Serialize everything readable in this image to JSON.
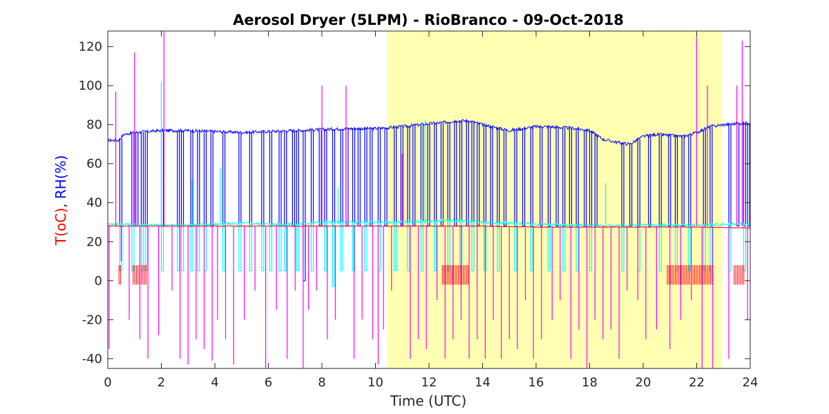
{
  "chart_data": {
    "type": "line",
    "title": "Aerosol Dryer (5LPM) - RioBranco - 09-Oct-2018",
    "xlabel": "Time (UTC)",
    "ylabel_parts": [
      {
        "text": "T(oC)",
        "color": "#ff0000"
      },
      {
        "text": ", ",
        "color": "#262626"
      },
      {
        "text": "RH(%)",
        "color": "#0000ff"
      }
    ],
    "xlim": [
      0,
      24
    ],
    "ylim": [
      -45,
      128
    ],
    "x_ticks": [
      "0",
      "2",
      "4",
      "6",
      "8",
      "10",
      "12",
      "14",
      "16",
      "18",
      "20",
      "22",
      "24"
    ],
    "y_ticks": [
      "-40",
      "-20",
      "0",
      "20",
      "40",
      "60",
      "80",
      "100",
      "120"
    ],
    "grid": false,
    "shaded_region": {
      "x_start": 10.45,
      "x_end": 22.95,
      "color": "#ffffb2"
    },
    "series": [
      {
        "color": "#0000ff",
        "baseline": [
          [
            0,
            72
          ],
          [
            0.4,
            72
          ],
          [
            0.6,
            75
          ],
          [
            1,
            76
          ],
          [
            2,
            77
          ],
          [
            3,
            77
          ],
          [
            4,
            76.5
          ],
          [
            5,
            76
          ],
          [
            6,
            76.5
          ],
          [
            7,
            77
          ],
          [
            8,
            77.5
          ],
          [
            9,
            78
          ],
          [
            10,
            78
          ],
          [
            10.5,
            78.5
          ],
          [
            11,
            79
          ],
          [
            12,
            80.5
          ],
          [
            12.5,
            81
          ],
          [
            13,
            82
          ],
          [
            13.5,
            82
          ],
          [
            14,
            80
          ],
          [
            14.5,
            78.5
          ],
          [
            15,
            77
          ],
          [
            15.5,
            78
          ],
          [
            16,
            79
          ],
          [
            16.5,
            79
          ],
          [
            17,
            78.5
          ],
          [
            17.5,
            78
          ],
          [
            18,
            77
          ],
          [
            18.5,
            72.5
          ],
          [
            19,
            71
          ],
          [
            19.5,
            70
          ],
          [
            20,
            74
          ],
          [
            20.5,
            75
          ],
          [
            21,
            74.5
          ],
          [
            21.5,
            74
          ],
          [
            22,
            76
          ],
          [
            22.5,
            79
          ],
          [
            23,
            80
          ],
          [
            23.5,
            80.5
          ],
          [
            24,
            81
          ]
        ],
        "dropouts": [
          [
            0.45,
            28
          ],
          [
            0.9,
            28
          ],
          [
            1.05,
            28
          ],
          [
            1.25,
            28
          ],
          [
            1.4,
            28
          ],
          [
            2.0,
            28
          ],
          [
            2.6,
            28
          ],
          [
            2.75,
            28
          ],
          [
            3.1,
            28
          ],
          [
            3.35,
            28
          ],
          [
            3.6,
            28
          ],
          [
            3.85,
            28
          ],
          [
            4.3,
            28
          ],
          [
            4.9,
            28
          ],
          [
            5.3,
            28
          ],
          [
            5.75,
            28
          ],
          [
            6.05,
            28
          ],
          [
            6.4,
            28
          ],
          [
            6.6,
            28
          ],
          [
            6.9,
            28
          ],
          [
            7.05,
            28
          ],
          [
            7.3,
            0
          ],
          [
            7.6,
            28
          ],
          [
            7.9,
            28
          ],
          [
            8.1,
            28
          ],
          [
            8.4,
            28
          ],
          [
            8.7,
            28
          ],
          [
            8.9,
            28
          ],
          [
            9.15,
            28
          ],
          [
            9.35,
            28
          ],
          [
            9.6,
            28
          ],
          [
            9.8,
            28
          ],
          [
            10.1,
            28
          ],
          [
            10.35,
            28
          ],
          [
            10.7,
            28
          ],
          [
            10.95,
            28
          ],
          [
            11.2,
            28
          ],
          [
            11.4,
            28
          ],
          [
            11.7,
            28
          ],
          [
            11.95,
            28
          ],
          [
            12.2,
            28
          ],
          [
            12.45,
            28
          ],
          [
            12.7,
            28
          ],
          [
            12.95,
            28
          ],
          [
            13.15,
            28
          ],
          [
            13.4,
            28
          ],
          [
            13.6,
            28
          ],
          [
            13.8,
            28
          ],
          [
            14.05,
            28
          ],
          [
            14.3,
            28
          ],
          [
            14.55,
            28
          ],
          [
            14.8,
            28
          ],
          [
            15.2,
            28
          ],
          [
            15.5,
            28
          ],
          [
            15.8,
            28
          ],
          [
            16.15,
            28
          ],
          [
            16.45,
            28
          ],
          [
            16.75,
            28
          ],
          [
            17.0,
            28
          ],
          [
            17.25,
            28
          ],
          [
            17.5,
            28
          ],
          [
            17.8,
            28
          ],
          [
            18.0,
            28
          ],
          [
            18.2,
            28
          ],
          [
            19.2,
            28
          ],
          [
            19.5,
            28
          ],
          [
            19.8,
            28
          ],
          [
            20.2,
            28
          ],
          [
            20.6,
            28
          ],
          [
            20.95,
            28
          ],
          [
            21.2,
            28
          ],
          [
            21.45,
            28
          ],
          [
            21.7,
            28
          ],
          [
            22.25,
            28
          ],
          [
            22.5,
            28
          ],
          [
            23.2,
            28
          ],
          [
            23.5,
            28
          ],
          [
            23.75,
            28
          ],
          [
            23.9,
            28
          ]
        ]
      },
      {
        "color": "#00ffff",
        "baseline": [
          [
            0,
            29
          ],
          [
            1,
            29
          ],
          [
            2,
            28.5
          ],
          [
            3,
            28.5
          ],
          [
            4,
            29
          ],
          [
            5,
            29.5
          ],
          [
            6,
            29
          ],
          [
            7,
            29
          ],
          [
            8,
            30
          ],
          [
            9,
            30
          ],
          [
            10,
            30
          ],
          [
            11,
            30
          ],
          [
            12,
            30.5
          ],
          [
            13,
            31
          ],
          [
            14,
            30
          ],
          [
            15,
            29.5
          ],
          [
            16,
            29
          ],
          [
            17,
            28.5
          ],
          [
            18,
            28.5
          ],
          [
            19,
            28
          ],
          [
            20,
            28.5
          ],
          [
            21,
            28.5
          ],
          [
            22,
            28.5
          ],
          [
            23,
            29
          ],
          [
            24,
            29
          ]
        ],
        "dropouts": [
          [
            0.45,
            5
          ],
          [
            0.9,
            5
          ],
          [
            1.25,
            5
          ],
          [
            1.4,
            5
          ],
          [
            2.0,
            5
          ],
          [
            2.6,
            5
          ],
          [
            2.75,
            5
          ],
          [
            3.1,
            5
          ],
          [
            3.35,
            5
          ],
          [
            3.6,
            5
          ],
          [
            4.3,
            5
          ],
          [
            4.9,
            5
          ],
          [
            5.3,
            5
          ],
          [
            5.75,
            5
          ],
          [
            6.05,
            5
          ],
          [
            6.4,
            5
          ],
          [
            6.6,
            5
          ],
          [
            7.05,
            5
          ],
          [
            7.6,
            5
          ],
          [
            8.1,
            5
          ],
          [
            8.4,
            -3
          ],
          [
            8.7,
            5
          ],
          [
            9.15,
            5
          ],
          [
            9.6,
            5
          ],
          [
            10.1,
            5
          ],
          [
            10.7,
            5
          ],
          [
            11.2,
            5
          ],
          [
            11.7,
            5
          ],
          [
            12.2,
            5
          ],
          [
            12.7,
            5
          ],
          [
            13.15,
            5
          ],
          [
            13.6,
            5
          ],
          [
            14.05,
            5
          ],
          [
            14.55,
            5
          ],
          [
            15.2,
            5
          ],
          [
            15.8,
            5
          ],
          [
            16.45,
            5
          ],
          [
            17.0,
            5
          ],
          [
            17.5,
            5
          ],
          [
            18.0,
            5
          ],
          [
            19.2,
            5
          ],
          [
            19.8,
            5
          ],
          [
            20.6,
            5
          ],
          [
            21.2,
            5
          ],
          [
            21.7,
            5
          ],
          [
            22.25,
            5
          ],
          [
            22.5,
            5
          ],
          [
            23.2,
            5
          ],
          [
            23.75,
            5
          ]
        ],
        "spikes": [
          [
            2.0,
            102
          ],
          [
            3.15,
            52
          ],
          [
            4.2,
            58
          ],
          [
            8.6,
            48
          ],
          [
            11.85,
            82
          ],
          [
            18.6,
            50
          ]
        ]
      },
      {
        "color": "#ff0000",
        "baseline": [
          [
            0,
            28
          ],
          [
            2,
            28
          ],
          [
            4,
            28
          ],
          [
            6,
            28
          ],
          [
            8,
            28
          ],
          [
            10,
            28
          ],
          [
            12,
            28
          ],
          [
            14,
            28
          ],
          [
            16,
            27.5
          ],
          [
            18,
            27.5
          ],
          [
            20,
            27.5
          ],
          [
            22,
            27.5
          ],
          [
            24,
            27
          ]
        ],
        "bars": [
          [
            0.42,
            0.52,
            8,
            -2
          ],
          [
            0.95,
            1.45,
            8,
            -2
          ],
          [
            12.5,
            13.5,
            8,
            -2
          ],
          [
            20.9,
            22.6,
            8,
            -2
          ],
          [
            23.4,
            23.8,
            8,
            -2
          ]
        ]
      },
      {
        "color": "#ff00ff",
        "spikes": [
          [
            0.05,
            -35
          ],
          [
            0.3,
            97
          ],
          [
            0.5,
            10
          ],
          [
            0.8,
            -20
          ],
          [
            1.0,
            117
          ],
          [
            1.2,
            -30
          ],
          [
            1.5,
            -40
          ],
          [
            1.9,
            -28
          ],
          [
            2.1,
            128
          ],
          [
            2.4,
            -5
          ],
          [
            2.7,
            -40
          ],
          [
            3.0,
            -43
          ],
          [
            3.3,
            -30
          ],
          [
            3.6,
            -35
          ],
          [
            3.9,
            -41
          ],
          [
            4.1,
            -20
          ],
          [
            4.4,
            -30
          ],
          [
            4.7,
            -43
          ],
          [
            5.1,
            -20
          ],
          [
            5.5,
            -5
          ],
          [
            5.9,
            -45
          ],
          [
            6.3,
            -15
          ],
          [
            6.7,
            -40
          ],
          [
            7.0,
            -5
          ],
          [
            7.3,
            -45
          ],
          [
            7.5,
            -15
          ],
          [
            7.8,
            -5
          ],
          [
            8.0,
            100
          ],
          [
            8.2,
            -30
          ],
          [
            8.5,
            -20
          ],
          [
            8.9,
            100
          ],
          [
            9.2,
            -40
          ],
          [
            9.5,
            -20
          ],
          [
            9.9,
            -30
          ],
          [
            10.1,
            -43
          ],
          [
            10.3,
            -25
          ],
          [
            10.6,
            -5
          ],
          [
            11.0,
            65
          ],
          [
            11.3,
            -40
          ],
          [
            11.6,
            -30
          ],
          [
            11.9,
            -35
          ],
          [
            12.3,
            -10
          ],
          [
            12.6,
            -40
          ],
          [
            12.9,
            -30
          ],
          [
            13.2,
            -20
          ],
          [
            13.5,
            -40
          ],
          [
            13.8,
            -30
          ],
          [
            14.1,
            -40
          ],
          [
            14.4,
            -20
          ],
          [
            14.7,
            -40
          ],
          [
            15.0,
            -30
          ],
          [
            15.3,
            -35
          ],
          [
            15.6,
            -10
          ],
          [
            15.9,
            -40
          ],
          [
            16.2,
            -30
          ],
          [
            16.6,
            -20
          ],
          [
            16.9,
            -10
          ],
          [
            17.3,
            -40
          ],
          [
            17.6,
            -25
          ],
          [
            17.9,
            -45
          ],
          [
            18.2,
            -20
          ],
          [
            18.5,
            -30
          ],
          [
            18.8,
            -25
          ],
          [
            19.1,
            -40
          ],
          [
            19.4,
            -5
          ],
          [
            19.8,
            -10
          ],
          [
            20.1,
            -30
          ],
          [
            20.5,
            -25
          ],
          [
            21.0,
            -35
          ],
          [
            21.4,
            -20
          ],
          [
            21.8,
            -10
          ],
          [
            22.0,
            125
          ],
          [
            22.2,
            -45
          ],
          [
            22.4,
            100
          ],
          [
            22.6,
            -45
          ],
          [
            23.2,
            -40
          ],
          [
            23.5,
            100
          ],
          [
            23.7,
            123
          ],
          [
            23.9,
            -20
          ],
          [
            24.0,
            95
          ]
        ]
      }
    ]
  }
}
